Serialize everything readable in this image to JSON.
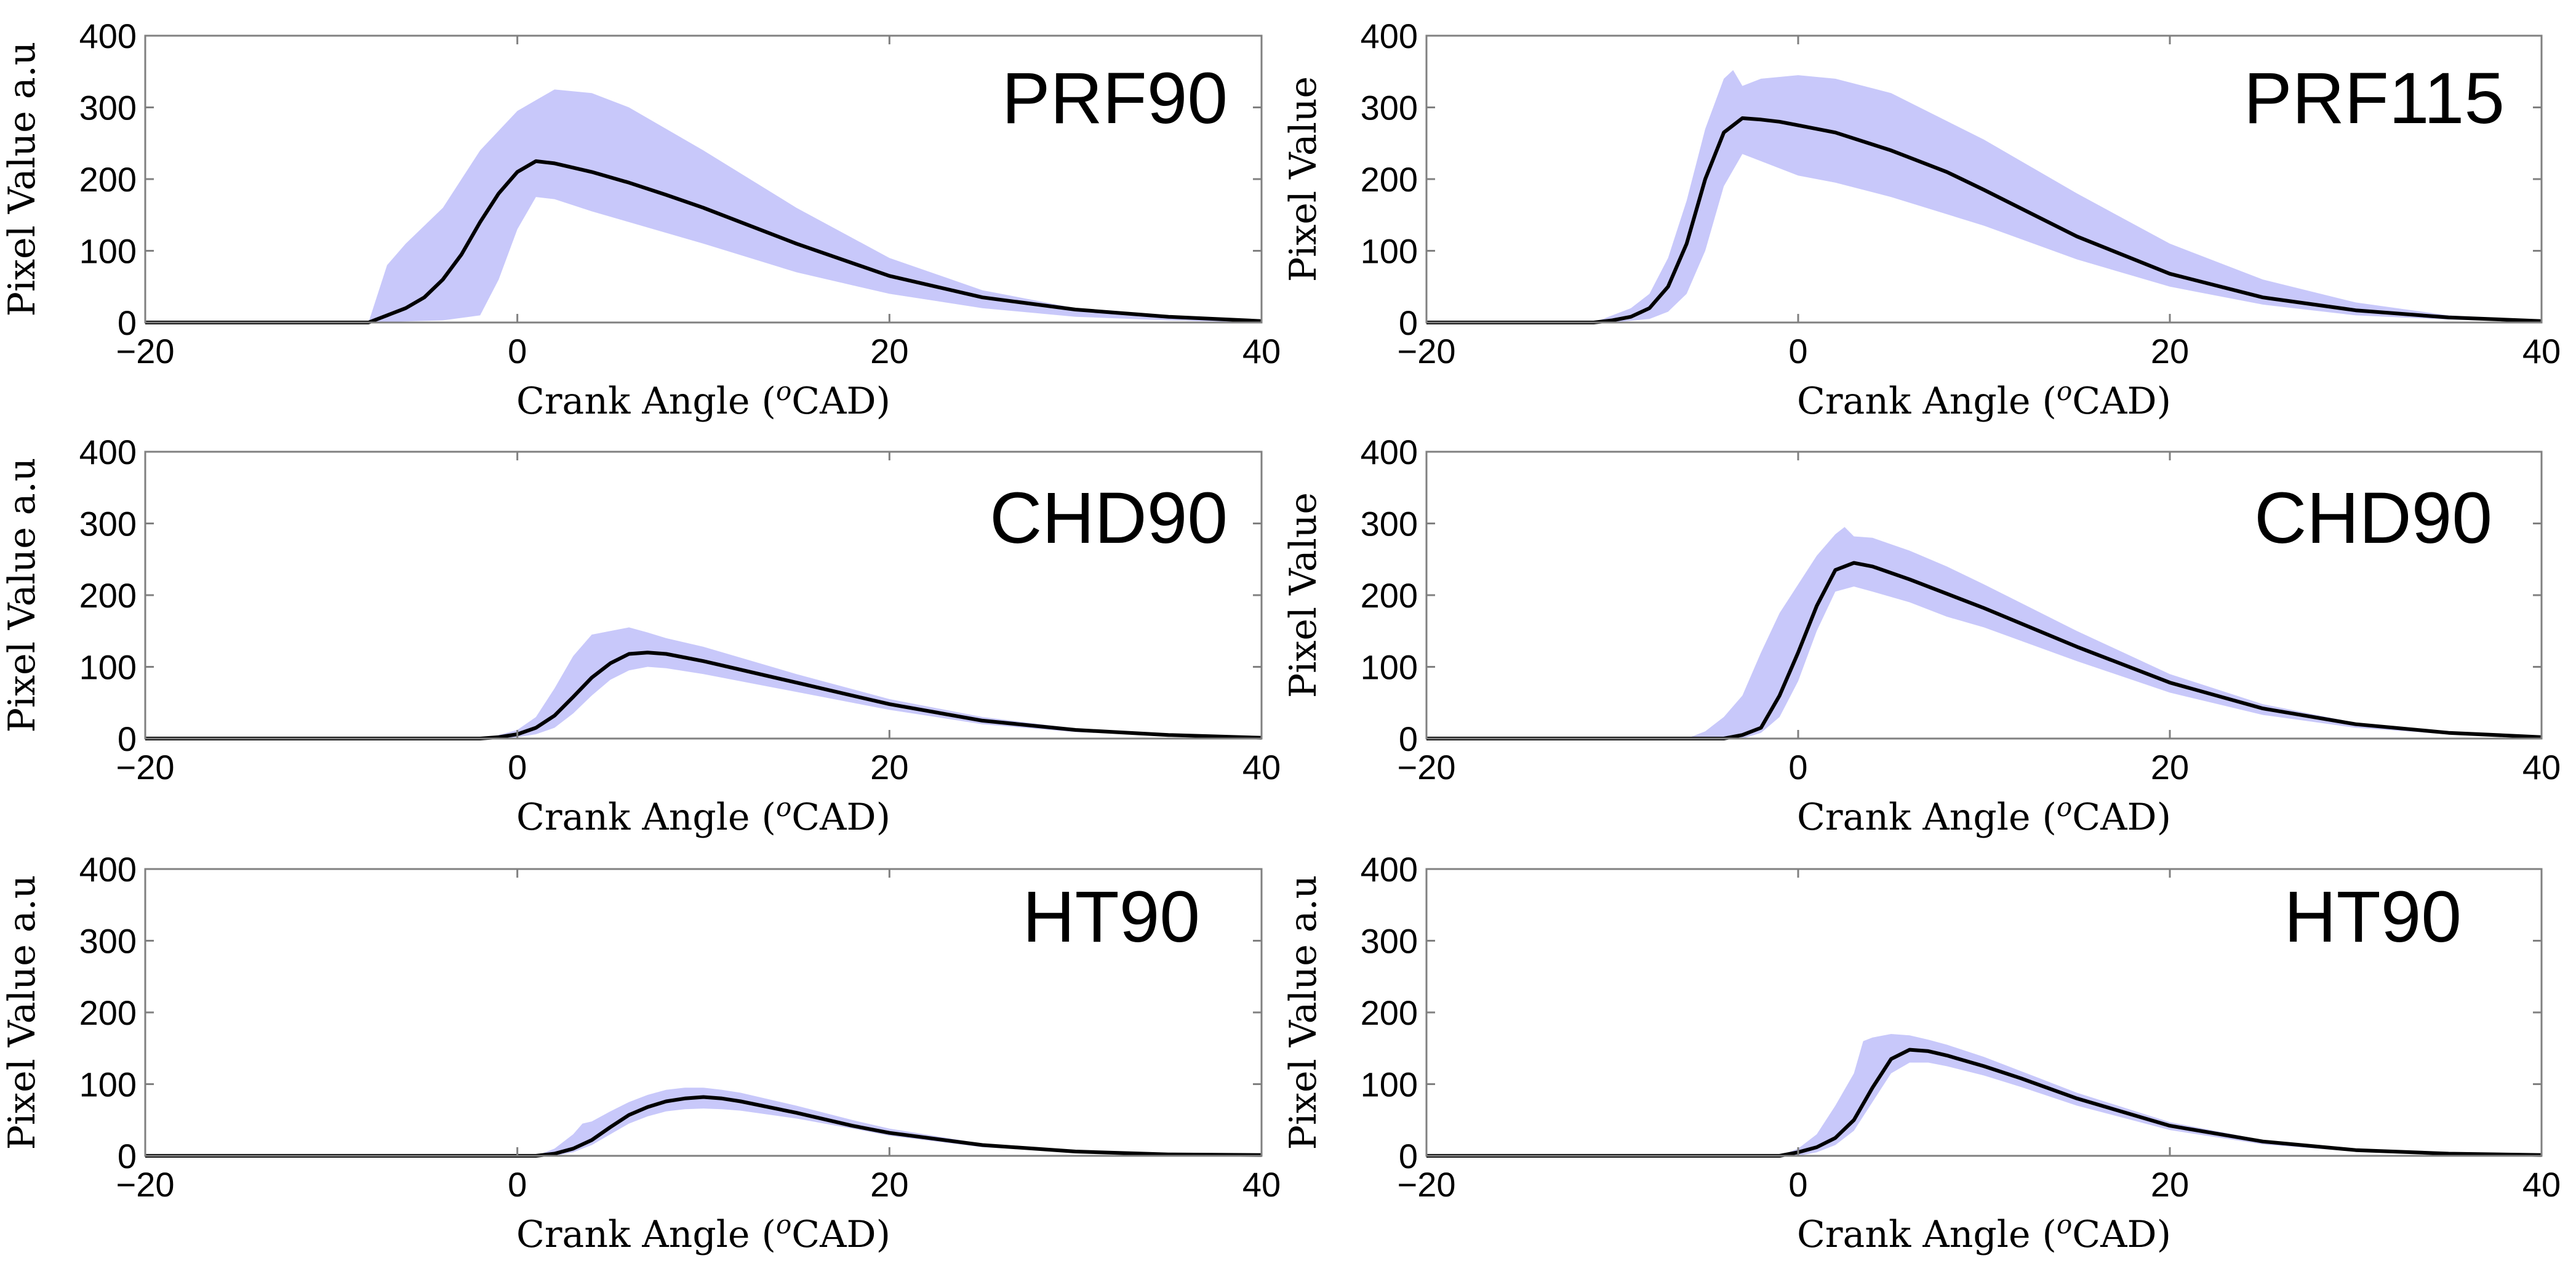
{
  "colors": {
    "band": "#c8c8fa",
    "line": "#000000",
    "axis": "#808080"
  },
  "chart_data": [
    {
      "type": "area",
      "title": "PRF90",
      "xlabel": "Crank Angle (oCAD)",
      "ylabel": "Pixel Value a.u",
      "xlim": [
        -20,
        40
      ],
      "ylim": [
        0,
        400
      ],
      "xticks": [
        -20,
        0,
        20,
        40
      ],
      "yticks": [
        0,
        100,
        200,
        300,
        400
      ],
      "grid": false,
      "series": [
        {
          "role": "mean",
          "x": [
            -20,
            -8,
            -7,
            -6,
            -5,
            -4,
            -3,
            -2,
            -1,
            0,
            1,
            2,
            4,
            6,
            8,
            10,
            15,
            20,
            25,
            30,
            35,
            40
          ],
          "y": [
            0,
            0,
            10,
            20,
            35,
            60,
            95,
            140,
            180,
            210,
            225,
            222,
            210,
            195,
            178,
            160,
            110,
            65,
            35,
            18,
            8,
            2
          ]
        },
        {
          "role": "upper",
          "x": [
            -20,
            -8,
            -7,
            -6,
            -4,
            -2,
            0,
            2,
            4,
            6,
            10,
            15,
            20,
            25,
            30,
            35,
            40
          ],
          "y": [
            0,
            0,
            80,
            110,
            160,
            240,
            295,
            325,
            320,
            300,
            240,
            160,
            90,
            45,
            20,
            8,
            2
          ]
        },
        {
          "role": "lower",
          "x": [
            -20,
            -8,
            -4,
            -2,
            -1,
            0,
            1,
            2,
            4,
            6,
            10,
            15,
            20,
            25,
            30,
            35,
            40
          ],
          "y": [
            0,
            0,
            3,
            10,
            60,
            130,
            175,
            172,
            155,
            140,
            110,
            70,
            40,
            20,
            8,
            3,
            0
          ]
        }
      ]
    },
    {
      "type": "area",
      "title": "PRF115",
      "xlabel": "Crank Angle (oCAD)",
      "ylabel": "Pixel Value",
      "xlim": [
        -20,
        40
      ],
      "ylim": [
        0,
        400
      ],
      "xticks": [
        -20,
        0,
        20,
        40
      ],
      "yticks": [
        0,
        100,
        200,
        300,
        400
      ],
      "grid": false,
      "series": [
        {
          "role": "mean",
          "x": [
            -20,
            -11,
            -10,
            -9,
            -8,
            -7,
            -6,
            -5,
            -4,
            -3,
            -2,
            -1,
            0,
            2,
            5,
            8,
            10,
            15,
            20,
            25,
            30,
            35,
            40
          ],
          "y": [
            0,
            0,
            3,
            8,
            20,
            50,
            110,
            200,
            265,
            285,
            283,
            280,
            275,
            265,
            240,
            210,
            185,
            120,
            68,
            35,
            17,
            7,
            2
          ]
        },
        {
          "role": "upper",
          "x": [
            -20,
            -11,
            -9,
            -8,
            -7,
            -6,
            -5,
            -4,
            -3.5,
            -3,
            -2,
            0,
            2,
            5,
            10,
            15,
            20,
            25,
            30,
            35,
            40
          ],
          "y": [
            0,
            0,
            20,
            40,
            90,
            170,
            270,
            340,
            352,
            330,
            340,
            345,
            340,
            320,
            255,
            180,
            110,
            60,
            28,
            10,
            3
          ]
        },
        {
          "role": "lower",
          "x": [
            -20,
            -10,
            -8,
            -7,
            -6,
            -5,
            -4,
            -3,
            -2,
            0,
            2,
            5,
            10,
            15,
            20,
            25,
            30,
            35,
            40
          ],
          "y": [
            0,
            0,
            5,
            15,
            40,
            100,
            190,
            235,
            225,
            205,
            195,
            175,
            135,
            88,
            50,
            25,
            10,
            4,
            1
          ]
        }
      ]
    },
    {
      "type": "area",
      "title": "CHD90",
      "xlabel": "Crank Angle (oCAD)",
      "ylabel": "Pixel Value a.u",
      "xlim": [
        -20,
        40
      ],
      "ylim": [
        0,
        400
      ],
      "xticks": [
        -20,
        0,
        20,
        40
      ],
      "yticks": [
        0,
        100,
        200,
        300,
        400
      ],
      "grid": false,
      "series": [
        {
          "role": "mean",
          "x": [
            -20,
            -2,
            -1,
            0,
            1,
            2,
            3,
            4,
            5,
            6,
            7,
            8,
            10,
            15,
            20,
            25,
            30,
            35,
            40
          ],
          "y": [
            0,
            0,
            2,
            6,
            15,
            32,
            58,
            85,
            105,
            118,
            120,
            118,
            108,
            78,
            48,
            25,
            12,
            5,
            1
          ]
        },
        {
          "role": "upper",
          "x": [
            -20,
            -2,
            -1,
            0,
            1,
            2,
            3,
            4,
            5,
            6,
            7,
            8,
            10,
            15,
            20,
            25,
            30,
            35,
            40
          ],
          "y": [
            0,
            0,
            5,
            12,
            30,
            70,
            115,
            145,
            150,
            155,
            148,
            140,
            128,
            90,
            55,
            30,
            14,
            6,
            2
          ]
        },
        {
          "role": "lower",
          "x": [
            -20,
            -1,
            0,
            1,
            2,
            3,
            4,
            5,
            6,
            7,
            8,
            10,
            15,
            20,
            25,
            30,
            35,
            40
          ],
          "y": [
            0,
            0,
            2,
            6,
            15,
            35,
            60,
            82,
            95,
            100,
            98,
            90,
            65,
            40,
            20,
            9,
            4,
            1
          ]
        }
      ]
    },
    {
      "type": "area",
      "title": "CHD90",
      "xlabel": "Crank Angle (oCAD)",
      "ylabel": "Pixel Value",
      "xlim": [
        -20,
        40
      ],
      "ylim": [
        0,
        400
      ],
      "xticks": [
        -20,
        0,
        20,
        40
      ],
      "yticks": [
        0,
        100,
        200,
        300,
        400
      ],
      "grid": false,
      "series": [
        {
          "role": "mean",
          "x": [
            -20,
            -4,
            -3,
            -2,
            -1,
            0,
            1,
            2,
            3,
            4,
            6,
            8,
            10,
            15,
            20,
            25,
            30,
            35,
            40
          ],
          "y": [
            0,
            0,
            5,
            15,
            60,
            120,
            185,
            235,
            245,
            240,
            222,
            202,
            182,
            128,
            78,
            42,
            20,
            8,
            2
          ]
        },
        {
          "role": "upper",
          "x": [
            -20,
            -6,
            -5,
            -4,
            -3,
            -2,
            -1,
            0,
            1,
            2,
            2.5,
            3,
            4,
            6,
            8,
            10,
            15,
            20,
            25,
            30,
            35,
            40
          ],
          "y": [
            0,
            0,
            10,
            30,
            60,
            120,
            175,
            215,
            255,
            285,
            295,
            282,
            280,
            262,
            240,
            215,
            150,
            90,
            48,
            22,
            9,
            3
          ]
        },
        {
          "role": "lower",
          "x": [
            -20,
            -3,
            -2,
            -1,
            0,
            1,
            2,
            3,
            4,
            6,
            8,
            10,
            15,
            20,
            25,
            30,
            35,
            40
          ],
          "y": [
            0,
            0,
            8,
            30,
            80,
            150,
            205,
            212,
            205,
            190,
            170,
            155,
            108,
            64,
            33,
            15,
            6,
            2
          ]
        }
      ]
    },
    {
      "type": "area",
      "title": "HT90",
      "xlabel": "Crank Angle (oCAD)",
      "ylabel": "Pixel Value a.u",
      "xlim": [
        -20,
        40
      ],
      "ylim": [
        0,
        400
      ],
      "xticks": [
        -20,
        0,
        20,
        40
      ],
      "yticks": [
        0,
        100,
        200,
        300,
        400
      ],
      "grid": false,
      "series": [
        {
          "role": "mean",
          "x": [
            -20,
            1,
            2,
            3,
            4,
            5,
            6,
            7,
            8,
            9,
            10,
            11,
            12,
            15,
            18,
            20,
            25,
            30,
            35,
            40
          ],
          "y": [
            0,
            0,
            3,
            10,
            22,
            40,
            57,
            68,
            76,
            80,
            82,
            80,
            76,
            60,
            42,
            32,
            15,
            6,
            2,
            1
          ]
        },
        {
          "role": "upper",
          "x": [
            -20,
            1,
            2,
            3,
            3.5,
            4,
            5,
            6,
            7,
            8,
            9,
            10,
            11,
            12,
            15,
            18,
            20,
            25,
            30,
            35,
            40
          ],
          "y": [
            0,
            0,
            10,
            30,
            45,
            48,
            62,
            75,
            85,
            92,
            95,
            95,
            92,
            88,
            70,
            50,
            38,
            17,
            7,
            3,
            1
          ]
        },
        {
          "role": "lower",
          "x": [
            -20,
            2,
            3,
            4,
            5,
            6,
            7,
            8,
            9,
            10,
            11,
            12,
            15,
            18,
            20,
            25,
            30,
            35,
            40
          ],
          "y": [
            0,
            0,
            5,
            15,
            30,
            45,
            55,
            62,
            65,
            66,
            65,
            63,
            52,
            38,
            28,
            12,
            5,
            2,
            0
          ]
        }
      ]
    },
    {
      "type": "area",
      "title": "HT90",
      "xlabel": "Crank Angle (oCAD)",
      "ylabel": "Pixel Value a.u",
      "xlim": [
        -20,
        40
      ],
      "ylim": [
        0,
        400
      ],
      "xticks": [
        -20,
        0,
        20,
        40
      ],
      "yticks": [
        0,
        100,
        200,
        300,
        400
      ],
      "grid": false,
      "series": [
        {
          "role": "mean",
          "x": [
            -20,
            -1,
            0,
            1,
            2,
            3,
            4,
            5,
            6,
            7,
            8,
            10,
            12,
            15,
            20,
            25,
            30,
            35,
            40
          ],
          "y": [
            0,
            0,
            5,
            12,
            25,
            50,
            95,
            135,
            148,
            146,
            140,
            125,
            108,
            80,
            42,
            20,
            8,
            3,
            1
          ]
        },
        {
          "role": "upper",
          "x": [
            -20,
            -1,
            0,
            1,
            2,
            3,
            3.5,
            4,
            5,
            6,
            7,
            8,
            10,
            12,
            15,
            20,
            25,
            30,
            35,
            40
          ],
          "y": [
            0,
            0,
            10,
            30,
            70,
            115,
            160,
            165,
            170,
            168,
            162,
            155,
            138,
            118,
            88,
            47,
            22,
            9,
            3,
            1
          ]
        },
        {
          "role": "lower",
          "x": [
            -20,
            0,
            1,
            2,
            3,
            4,
            5,
            6,
            7,
            8,
            10,
            12,
            15,
            20,
            25,
            30,
            35,
            40
          ],
          "y": [
            0,
            0,
            5,
            15,
            35,
            75,
            115,
            130,
            130,
            125,
            112,
            96,
            70,
            36,
            16,
            6,
            2,
            0
          ]
        }
      ]
    }
  ]
}
